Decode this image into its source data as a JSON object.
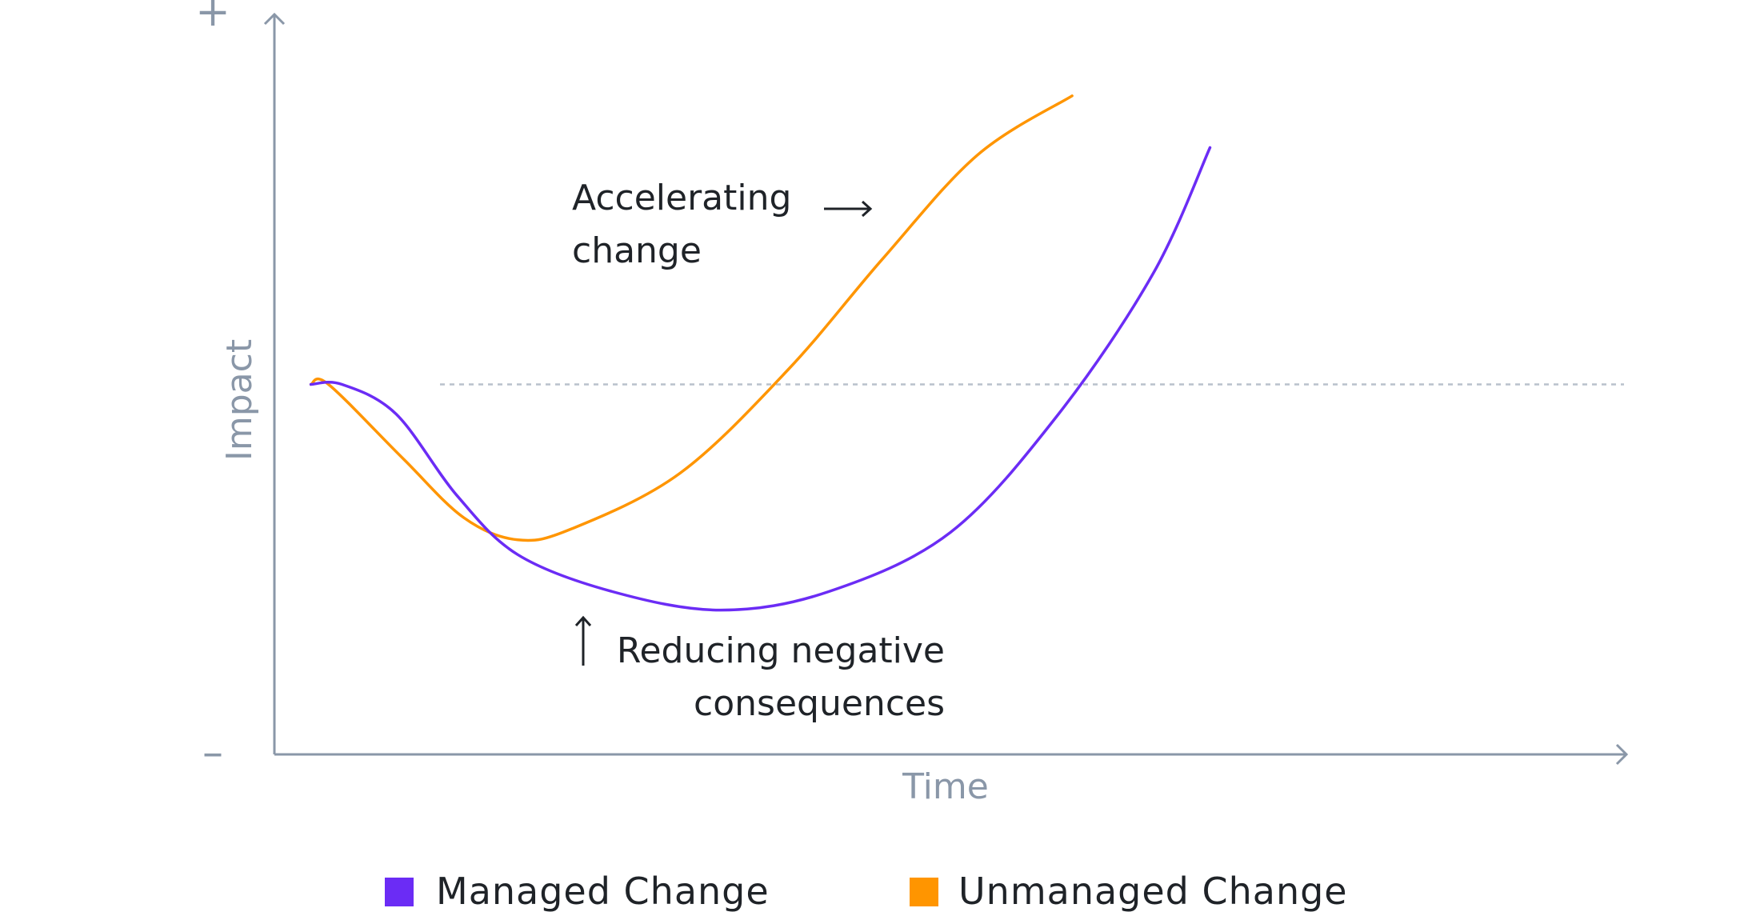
{
  "chart_data": {
    "type": "line",
    "title": "",
    "xlabel": "Time",
    "ylabel": "Impact",
    "y_top_marker": "+",
    "y_bottom_marker": "–",
    "xlim": [
      0,
      100
    ],
    "ylim": [
      0,
      100
    ],
    "grid": false,
    "legend_placement": "bottom-center",
    "reference_line": {
      "y": 50,
      "style": "dashed",
      "color": "#b9c1cc"
    },
    "series": [
      {
        "name": "Managed Change",
        "color": "#6b2cf5",
        "points": [
          [
            2.7,
            50
          ],
          [
            5.0,
            50
          ],
          [
            9.0,
            46
          ],
          [
            13.5,
            35
          ],
          [
            18.0,
            27
          ],
          [
            25.0,
            22
          ],
          [
            33.0,
            19.5
          ],
          [
            41.0,
            22
          ],
          [
            50.0,
            30
          ],
          [
            58.0,
            46
          ],
          [
            65.0,
            65
          ],
          [
            69.2,
            82
          ]
        ]
      },
      {
        "name": "Unmanaged Change",
        "color": "#ff9500",
        "points": [
          [
            2.7,
            50
          ],
          [
            4.0,
            50
          ],
          [
            9.5,
            40
          ],
          [
            14.0,
            32
          ],
          [
            18.0,
            29
          ],
          [
            22.0,
            30.5
          ],
          [
            30.0,
            38
          ],
          [
            38.0,
            52
          ],
          [
            45.0,
            67
          ],
          [
            52.0,
            81
          ],
          [
            59.0,
            89
          ]
        ]
      }
    ],
    "annotations": [
      {
        "lines": [
          "Accelerating",
          "change"
        ],
        "arrow": "right"
      },
      {
        "lines": [
          "Reducing negative",
          "consequences"
        ],
        "arrow": "up"
      }
    ]
  }
}
